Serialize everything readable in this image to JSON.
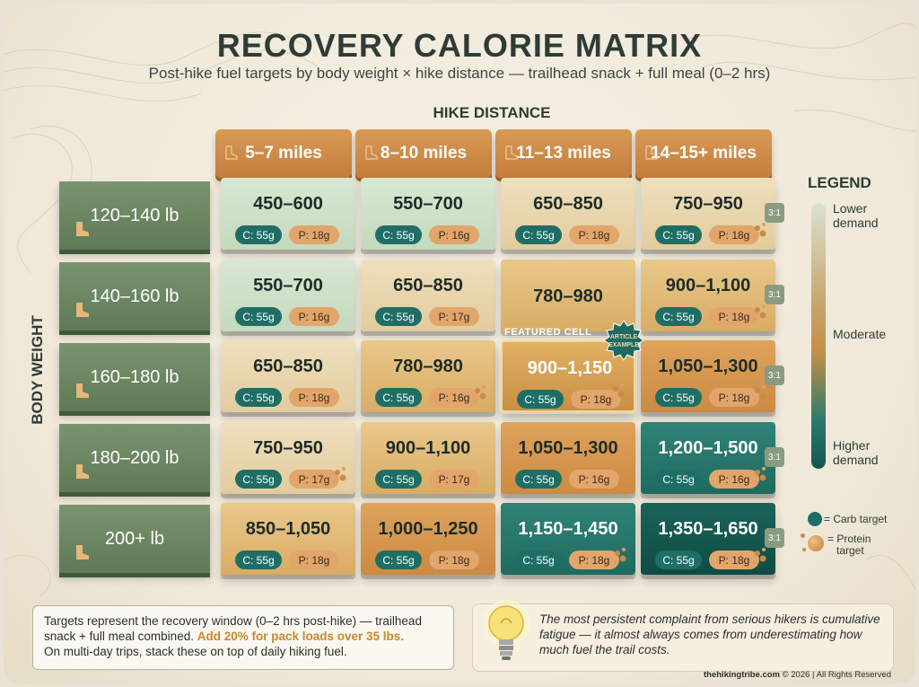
{
  "title": "RECOVERY CALORIE MATRIX",
  "subtitle": "Post-hike fuel targets by body weight × hike distance — trailhead snack + full meal (0–2 hrs)",
  "x_axis_label": "HIKE DISTANCE",
  "y_axis_label": "BODY WEIGHT",
  "columns": [
    "5–7 miles",
    "8–10 miles",
    "11–13 miles",
    "14–15+ miles"
  ],
  "rows": [
    {
      "label": "120–140 lb",
      "ratio": "3:1",
      "cells": [
        {
          "range": "450–600",
          "carb": "C: 55g",
          "protein": "P: 18g",
          "level": "lowest"
        },
        {
          "range": "550–700",
          "carb": "C: 55g",
          "protein": "P: 16g",
          "level": "lowest"
        },
        {
          "range": "650–850",
          "carb": "C: 55g",
          "protein": "P: 18g",
          "level": "low"
        },
        {
          "range": "750–950",
          "carb": "C: 55g",
          "protein": "P: 18g",
          "level": "low"
        }
      ]
    },
    {
      "label": "140–160 lb",
      "ratio": "3:1",
      "cells": [
        {
          "range": "550–700",
          "carb": "C: 55g",
          "protein": "P: 16g",
          "level": "lowest"
        },
        {
          "range": "650–850",
          "carb": "C: 55g",
          "protein": "P: 17g",
          "level": "low"
        },
        {
          "range": "780–980",
          "carb": "",
          "protein": "",
          "level": "moderate"
        },
        {
          "range": "900–1,100",
          "carb": "C: 55g",
          "protein": "P: 18g",
          "level": "moderate"
        }
      ]
    },
    {
      "label": "160–180 lb",
      "ratio": "3:1",
      "cells": [
        {
          "range": "650–850",
          "carb": "C: 55g",
          "protein": "P: 18g",
          "level": "low"
        },
        {
          "range": "780–980",
          "carb": "C: 55g",
          "protein": "P: 16g",
          "level": "moderate"
        },
        {
          "range": "900–1,150",
          "carb": "C: 55g",
          "protein": "P: 18g",
          "level": "featured"
        },
        {
          "range": "1,050–1,300",
          "carb": "C: 55g",
          "protein": "P: 18g",
          "level": "high"
        }
      ]
    },
    {
      "label": "180–200 lb",
      "ratio": "3:1",
      "cells": [
        {
          "range": "750–950",
          "carb": "C: 55g",
          "protein": "P: 17g",
          "level": "low"
        },
        {
          "range": "900–1,100",
          "carb": "C: 55g",
          "protein": "P: 17g",
          "level": "moderate"
        },
        {
          "range": "1,050–1,300",
          "carb": "C: 55g",
          "protein": "P: 16g",
          "level": "high"
        },
        {
          "range": "1,200–1,500",
          "carb": "C: 55g",
          "protein": "P: 16g",
          "level": "higher"
        }
      ]
    },
    {
      "label": "200+ lb",
      "ratio": "3:1",
      "cells": [
        {
          "range": "850–1,050",
          "carb": "C: 55g",
          "protein": "P: 18g",
          "level": "moderate"
        },
        {
          "range": "1,000–1,250",
          "carb": "C: 55g",
          "protein": "P: 18g",
          "level": "high"
        },
        {
          "range": "1,150–1,450",
          "carb": "C: 55g",
          "protein": "P: 18g",
          "level": "higher"
        },
        {
          "range": "1,350–1,650",
          "carb": "C: 55g",
          "protein": "P: 18g",
          "level": "highest"
        }
      ]
    }
  ],
  "featured": {
    "label": "FEATURED CELL",
    "badge_line1": "ARTICLE",
    "badge_line2": "EXAMPLE"
  },
  "legend": {
    "title": "LEGEND",
    "lower": [
      "Lower",
      "demand"
    ],
    "moderate": "Moderate",
    "higher": [
      "Higher",
      "demand"
    ],
    "carb": "= Carb target",
    "protein": [
      "= Protein",
      "target"
    ]
  },
  "colors": {
    "lowest": "#cfe0c9",
    "low": "#ead8b2",
    "moderate": "#e0b875",
    "high": "#d79a4f",
    "higher": "#2b7a6d",
    "highest": "#155a52",
    "featured": "#d8a052",
    "carb_pill": "#1f6e66",
    "protein_pill": "#e2a56a"
  },
  "note": {
    "text1": "Targets represent the recovery window (0–2 hrs post-hike) — trailhead snack + full meal combined.",
    "highlight": "Add 20% for pack loads over 35 lbs.",
    "text2": "On multi-day trips, stack these on top of daily hiking fuel."
  },
  "quote": "The most persistent complaint from serious hikers is cumulative fatigue — it almost always comes from underestimating how much fuel the trail costs.",
  "footer": {
    "site": "thehikingtribe.com",
    "rest": " © 2026 | All Rights Reserved"
  }
}
